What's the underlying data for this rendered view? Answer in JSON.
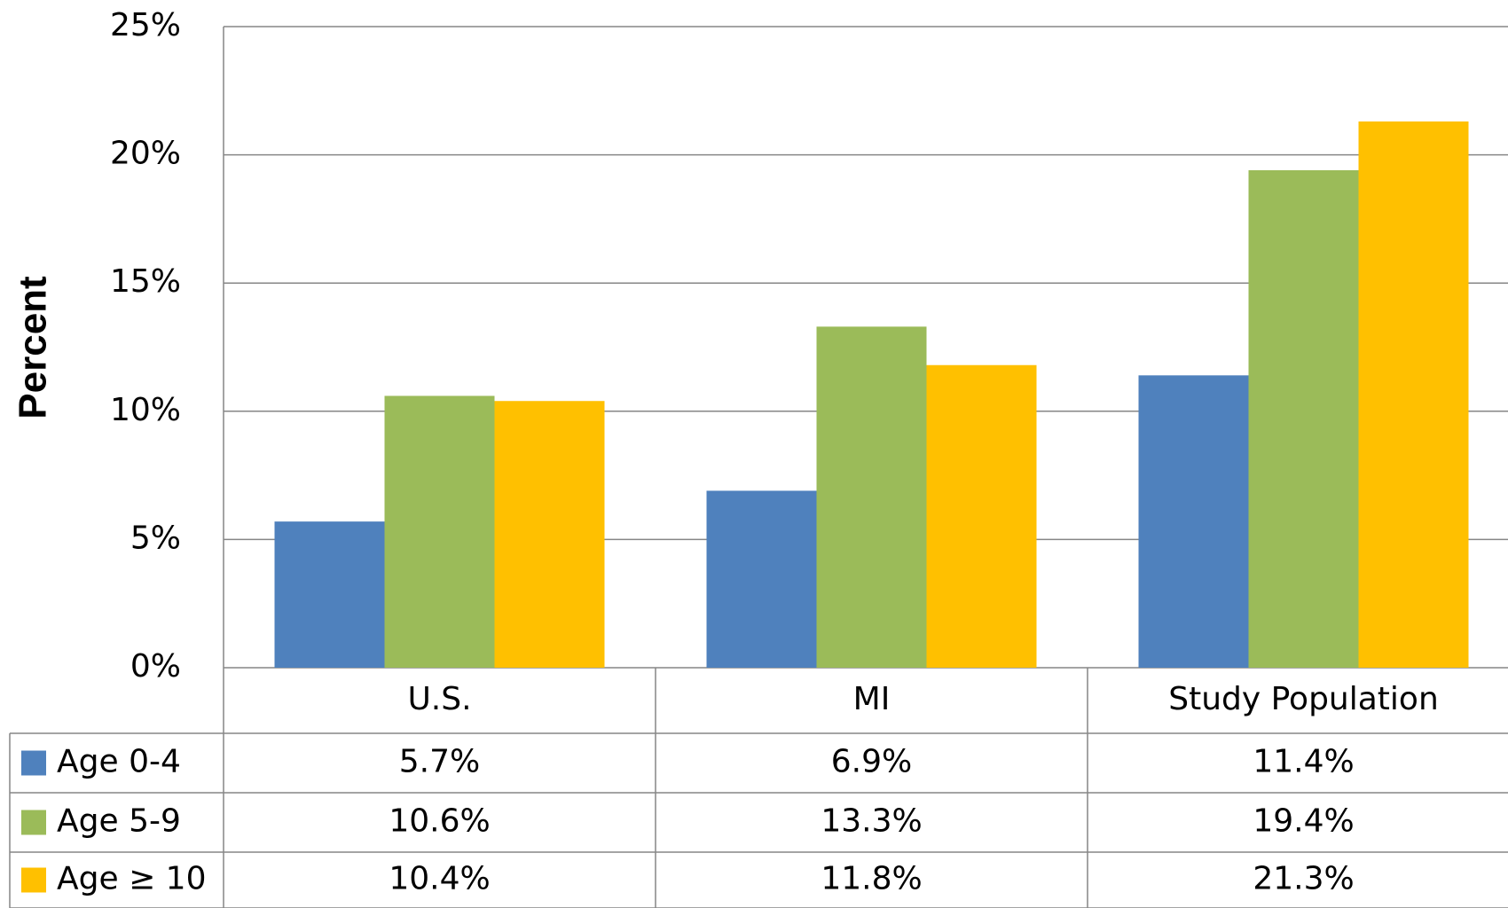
{
  "chart_data": {
    "type": "bar",
    "y_label": "Percent",
    "categories": [
      "U.S.",
      "MI",
      "Study Population"
    ],
    "series": [
      {
        "name": "Age 0-4",
        "color": "#4f81bd",
        "values": [
          5.7,
          6.9,
          11.4
        ],
        "value_labels": [
          "5.7%",
          "6.9%",
          "11.4%"
        ]
      },
      {
        "name": "Age 5-9",
        "color": "#9bbb59",
        "values": [
          10.6,
          13.3,
          19.4
        ],
        "value_labels": [
          "10.6%",
          "13.3%",
          "19.4%"
        ]
      },
      {
        "name": "Age ≥ 10",
        "color": "#ffc000",
        "values": [
          10.4,
          11.8,
          21.3
        ],
        "value_labels": [
          "10.4%",
          "11.8%",
          "21.3%"
        ]
      }
    ],
    "ylim": [
      0,
      25
    ],
    "yticks": [
      {
        "value": 0,
        "label": "0%"
      },
      {
        "value": 5,
        "label": "5%"
      },
      {
        "value": 10,
        "label": "10%"
      },
      {
        "value": 15,
        "label": "15%"
      },
      {
        "value": 20,
        "label": "20%"
      },
      {
        "value": 25,
        "label": "25%"
      }
    ],
    "grid": true
  }
}
